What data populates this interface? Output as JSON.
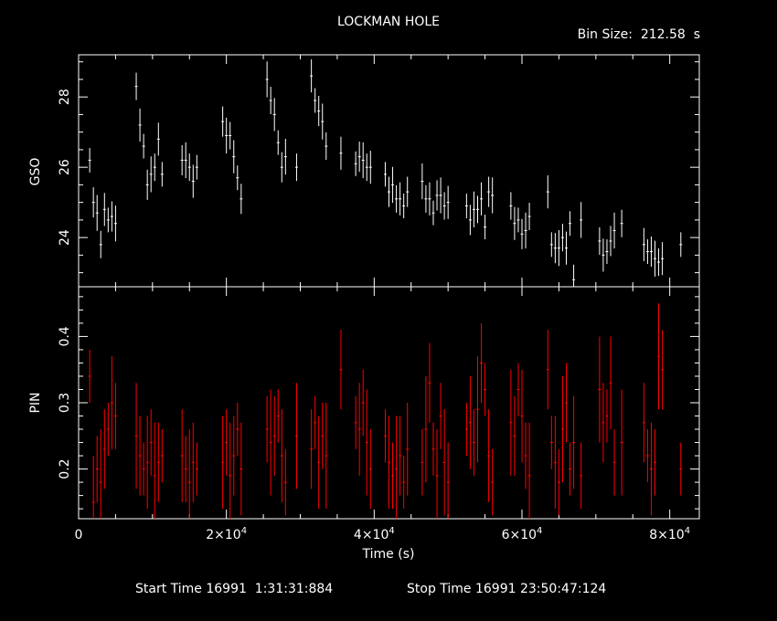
{
  "title": "LOCKMAN HOLE",
  "bin_size": "Bin Size:  212.58  s",
  "footer": {
    "start": "Start Time 16991  1:31:31:884",
    "stop": "Stop Time 16991 23:50:47:124"
  },
  "colors": {
    "background": "#000000",
    "axes": "#ffffff",
    "gso": "#ffffff",
    "pin": "#ff0000"
  },
  "chart_data": [
    {
      "type": "scatter",
      "panel": "top",
      "ylabel": "GSO",
      "xlim": [
        0,
        84000
      ],
      "ylim": [
        22.6,
        29.2
      ],
      "yticks": [
        24,
        26,
        28
      ],
      "yticklabels": [
        "24",
        "26",
        "28"
      ],
      "error_bars": true,
      "series": [
        {
          "color": "#ffffff",
          "x": [
            1500,
            2000,
            2500,
            3000,
            3500,
            4000,
            4500,
            5000,
            7800,
            8300,
            8800,
            9300,
            9800,
            10300,
            10800,
            11300,
            14000,
            14500,
            15000,
            15500,
            16000,
            19500,
            20000,
            20500,
            21000,
            21500,
            22000,
            25500,
            26000,
            26500,
            27000,
            27500,
            28000,
            29500,
            31500,
            32000,
            32500,
            33000,
            33500,
            35500,
            37500,
            38000,
            38500,
            39000,
            39500,
            41500,
            42000,
            42500,
            43000,
            43500,
            44000,
            44500,
            46500,
            47000,
            47500,
            48000,
            48500,
            49000,
            49500,
            50000,
            52500,
            53000,
            53500,
            54000,
            54500,
            55000,
            55500,
            56000,
            58500,
            59000,
            59500,
            60000,
            60500,
            61000,
            63500,
            64000,
            64500,
            65000,
            65500,
            66000,
            66500,
            67000,
            68000,
            70500,
            71000,
            71500,
            72000,
            72500,
            73500,
            76500,
            77000,
            77500,
            78000,
            78500,
            79000,
            81500
          ],
          "y": [
            26.2,
            25.0,
            24.7,
            23.8,
            24.8,
            24.5,
            24.6,
            24.4,
            28.3,
            27.2,
            26.6,
            25.5,
            25.8,
            26.0,
            26.8,
            25.8,
            26.2,
            26.2,
            26.0,
            25.6,
            26.0,
            27.3,
            26.9,
            26.9,
            26.3,
            25.7,
            25.1,
            28.5,
            27.9,
            27.5,
            26.7,
            26.0,
            26.3,
            26.0,
            28.6,
            27.9,
            27.6,
            27.3,
            26.6,
            26.4,
            26.1,
            26.3,
            26.2,
            26.0,
            26.0,
            25.8,
            25.3,
            25.5,
            25.1,
            25.1,
            24.9,
            25.3,
            25.6,
            25.1,
            25.1,
            24.7,
            25.2,
            25.2,
            24.9,
            25.0,
            24.9,
            24.5,
            24.8,
            24.8,
            25.1,
            24.3,
            25.3,
            25.2,
            24.9,
            24.4,
            24.5,
            24.1,
            24.2,
            24.6,
            25.3,
            23.8,
            23.7,
            23.7,
            24.0,
            23.7,
            24.4,
            22.8,
            24.5,
            23.9,
            23.5,
            23.6,
            23.9,
            24.2,
            24.4,
            23.8,
            23.6,
            23.6,
            23.4,
            23.3,
            23.4,
            23.8
          ]
        }
      ]
    },
    {
      "type": "scatter",
      "panel": "bottom",
      "ylabel": "PIN",
      "xlabel": "Time (s)",
      "xlim": [
        0,
        84000
      ],
      "ylim": [
        0.125,
        0.475
      ],
      "xticks": [
        0,
        20000,
        40000,
        60000,
        80000
      ],
      "xticklabels": [
        "0",
        "2×10^4",
        "4×10^4",
        "6×10^4",
        "8×10^4"
      ],
      "yticks": [
        0.2,
        0.3,
        0.4
      ],
      "yticklabels": [
        "0.2",
        "0.3",
        "0.4"
      ],
      "error_bars": true,
      "series": [
        {
          "color": "#ff0000",
          "x": [
            1500,
            2000,
            2500,
            3000,
            3500,
            4000,
            4500,
            5000,
            7800,
            8300,
            8800,
            9300,
            9800,
            10300,
            10800,
            11300,
            14000,
            14500,
            15000,
            15500,
            16000,
            19500,
            20000,
            20500,
            21000,
            21500,
            22000,
            25500,
            26000,
            26500,
            27000,
            27500,
            28000,
            29500,
            31500,
            32000,
            32500,
            33000,
            33500,
            35500,
            37500,
            38000,
            38500,
            39000,
            39500,
            41500,
            42000,
            42500,
            43000,
            43500,
            44000,
            44500,
            46500,
            47000,
            47500,
            48000,
            48500,
            49000,
            49500,
            50000,
            52500,
            53000,
            53500,
            54000,
            54500,
            55000,
            55500,
            56000,
            58500,
            59000,
            59500,
            60000,
            60500,
            61000,
            63500,
            64000,
            64500,
            65000,
            65500,
            66000,
            66500,
            67000,
            68000,
            70500,
            71000,
            71500,
            72000,
            72500,
            73500,
            76500,
            77000,
            77500,
            78000,
            78500,
            79000,
            81500
          ],
          "y": [
            0.34,
            0.15,
            0.2,
            0.18,
            0.23,
            0.26,
            0.3,
            0.28,
            0.25,
            0.22,
            0.2,
            0.21,
            0.24,
            0.19,
            0.21,
            0.22,
            0.22,
            0.2,
            0.18,
            0.21,
            0.2,
            0.21,
            0.24,
            0.19,
            0.22,
            0.26,
            0.2,
            0.26,
            0.24,
            0.25,
            0.28,
            0.22,
            0.18,
            0.25,
            0.23,
            0.27,
            0.21,
            0.25,
            0.22,
            0.35,
            0.27,
            0.26,
            0.3,
            0.24,
            0.2,
            0.25,
            0.21,
            0.19,
            0.2,
            0.22,
            0.18,
            0.23,
            0.21,
            0.26,
            0.33,
            0.23,
            0.19,
            0.28,
            0.21,
            0.18,
            0.26,
            0.27,
            0.24,
            0.29,
            0.36,
            0.32,
            0.22,
            0.18,
            0.27,
            0.25,
            0.32,
            0.28,
            0.22,
            0.19,
            0.35,
            0.24,
            0.21,
            0.18,
            0.26,
            0.3,
            0.2,
            0.24,
            0.19,
            0.32,
            0.27,
            0.28,
            0.33,
            0.21,
            0.24,
            0.27,
            0.22,
            0.2,
            0.21,
            0.37,
            0.35,
            0.2
          ]
        }
      ]
    }
  ]
}
